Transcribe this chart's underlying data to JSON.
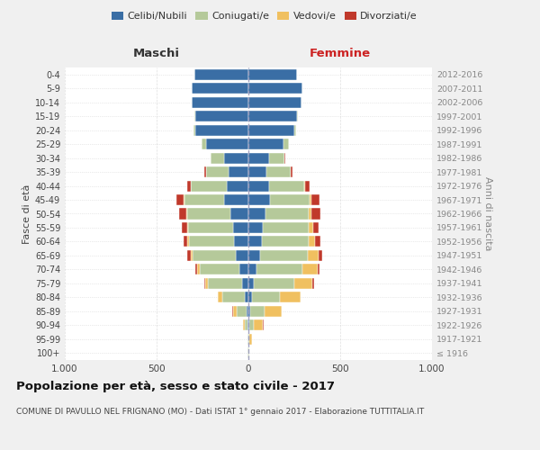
{
  "age_groups": [
    "100+",
    "95-99",
    "90-94",
    "85-89",
    "80-84",
    "75-79",
    "70-74",
    "65-69",
    "60-64",
    "55-59",
    "50-54",
    "45-49",
    "40-44",
    "35-39",
    "30-34",
    "25-29",
    "20-24",
    "15-19",
    "10-14",
    "5-9",
    "0-4"
  ],
  "birth_years": [
    "≤ 1916",
    "1917-1921",
    "1922-1926",
    "1927-1931",
    "1932-1936",
    "1937-1941",
    "1942-1946",
    "1947-1951",
    "1952-1956",
    "1957-1961",
    "1962-1966",
    "1967-1971",
    "1972-1976",
    "1977-1981",
    "1982-1986",
    "1987-1991",
    "1992-1996",
    "1997-2001",
    "2002-2006",
    "2007-2011",
    "2012-2016"
  ],
  "maschi": {
    "celibi": [
      2,
      2,
      5,
      10,
      20,
      35,
      50,
      70,
      80,
      85,
      100,
      130,
      120,
      110,
      130,
      230,
      290,
      290,
      310,
      310,
      295
    ],
    "coniugati": [
      1,
      3,
      15,
      55,
      120,
      185,
      215,
      235,
      245,
      245,
      235,
      220,
      195,
      120,
      75,
      25,
      10,
      5,
      0,
      0,
      0
    ],
    "vedovi": [
      0,
      2,
      10,
      20,
      25,
      15,
      12,
      10,
      8,
      5,
      3,
      2,
      1,
      1,
      0,
      0,
      0,
      0,
      0,
      0,
      0
    ],
    "divorziati": [
      0,
      0,
      0,
      1,
      2,
      5,
      10,
      18,
      22,
      30,
      40,
      38,
      15,
      8,
      3,
      2,
      0,
      0,
      0,
      0,
      0
    ]
  },
  "femmine": {
    "nubili": [
      2,
      2,
      5,
      10,
      18,
      30,
      45,
      65,
      75,
      80,
      95,
      120,
      115,
      100,
      115,
      190,
      250,
      265,
      290,
      295,
      265
    ],
    "coniugate": [
      1,
      5,
      25,
      80,
      155,
      220,
      250,
      260,
      255,
      250,
      235,
      215,
      190,
      130,
      80,
      30,
      12,
      5,
      0,
      0,
      0
    ],
    "vedove": [
      2,
      15,
      50,
      90,
      110,
      100,
      80,
      55,
      35,
      22,
      12,
      8,
      4,
      2,
      1,
      0,
      0,
      0,
      0,
      0,
      0
    ],
    "divorziate": [
      0,
      0,
      1,
      2,
      3,
      7,
      12,
      20,
      25,
      30,
      50,
      45,
      25,
      10,
      5,
      2,
      0,
      0,
      0,
      0,
      0
    ]
  },
  "colors": {
    "celibi_nubili": "#3a6ea5",
    "coniugati_e": "#b5c99a",
    "vedovi_e": "#f0c060",
    "divorziati_e": "#c0392b"
  },
  "title": "Popolazione per età, sesso e stato civile - 2017",
  "subtitle": "COMUNE DI PAVULLO NEL FRIGNANO (MO) - Dati ISTAT 1° gennaio 2017 - Elaborazione TUTTITALIA.IT",
  "xlabel_maschi": "Maschi",
  "xlabel_femmine": "Femmine",
  "ylabel_left": "Fasce di età",
  "ylabel_right": "Anni di nascita",
  "xlim": 1000,
  "bg_color": "#f0f0f0",
  "plot_bg": "#ffffff",
  "grid_color": "#cccccc"
}
